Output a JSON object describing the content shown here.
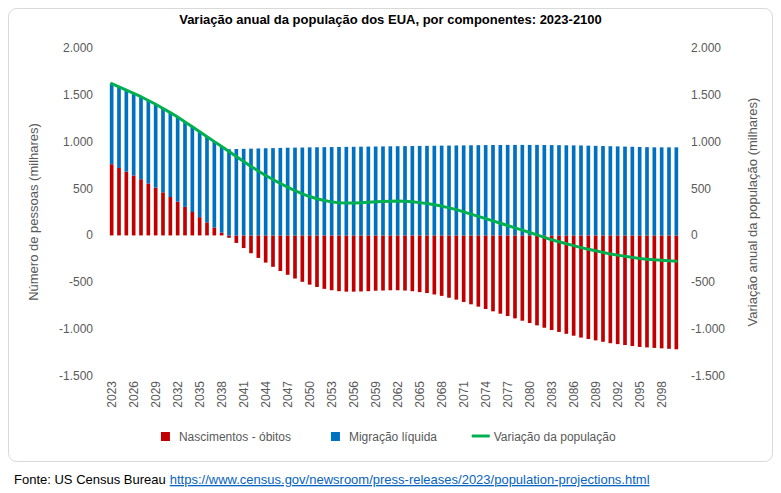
{
  "chart_data": {
    "type": "bar",
    "title": "Variação anual da população dos EUA, por componentes: 2023-2100",
    "y_label": "Número de pessoas (milhares)",
    "y2_label": "Variação anual da população (milhares)",
    "source": "Fonte: US Census Bureau",
    "source_url": "https://www.census.gov/newsroom/press-releases/2023/population-projections.html",
    "stacked": true,
    "grid": false,
    "legend": "bottom",
    "ylim": [
      -1500,
      2000
    ],
    "yticks": [
      {
        "value": -1500,
        "label": "-1.500"
      },
      {
        "value": -1000,
        "label": "-1.000"
      },
      -500,
      0,
      500,
      {
        "value": 1000,
        "label": "1.000"
      },
      {
        "value": 1500,
        "label": "1.500"
      },
      {
        "value": 2000,
        "label": "2.000"
      }
    ],
    "y2lim": [
      -1500,
      2000
    ],
    "y2ticks": [
      {
        "value": -1500,
        "label": "-1.500"
      },
      {
        "value": -1000,
        "label": "-1.000"
      },
      -500,
      0,
      500,
      {
        "value": 1000,
        "label": "1.000"
      },
      {
        "value": 1500,
        "label": "1.500"
      },
      {
        "value": 2000,
        "label": "2.000"
      }
    ],
    "categories": [
      "2023",
      null,
      null,
      "2026",
      null,
      null,
      "2029",
      null,
      null,
      "2032",
      null,
      null,
      "2035",
      null,
      null,
      "2038",
      null,
      null,
      "2041",
      null,
      null,
      "2044",
      null,
      null,
      "2047",
      null,
      null,
      "2050",
      null,
      null,
      "2053",
      null,
      null,
      "2056",
      null,
      null,
      "2059",
      null,
      null,
      "2062",
      null,
      null,
      "2065",
      null,
      null,
      "2068",
      null,
      null,
      "2071",
      null,
      null,
      "2074",
      null,
      null,
      "2077",
      null,
      null,
      "2080",
      null,
      null,
      "2083",
      null,
      null,
      "2086",
      null,
      null,
      "2089",
      null,
      null,
      "2092",
      null,
      null,
      "2095",
      null,
      null,
      "2098",
      null,
      null
    ],
    "series": [
      {
        "name": "Nascimentos - óbitos",
        "type": "bar",
        "color": "#c00000",
        "values": [
          760,
          720,
          680,
          640,
          600,
          555,
          510,
          460,
          410,
          360,
          305,
          250,
          195,
          140,
          85,
          30,
          -25,
          -80,
          -135,
          -190,
          -240,
          -290,
          -335,
          -380,
          -420,
          -460,
          -495,
          -525,
          -550,
          -570,
          -585,
          -595,
          -600,
          -600,
          -598,
          -595,
          -590,
          -588,
          -585,
          -585,
          -588,
          -595,
          -605,
          -615,
          -630,
          -645,
          -665,
          -685,
          -710,
          -735,
          -760,
          -785,
          -810,
          -835,
          -860,
          -885,
          -910,
          -935,
          -960,
          -985,
          -1010,
          -1030,
          -1050,
          -1070,
          -1090,
          -1105,
          -1120,
          -1135,
          -1150,
          -1160,
          -1170,
          -1180,
          -1190,
          -1195,
          -1200,
          -1205,
          -1210,
          -1215
        ]
      },
      {
        "name": "Migração líquida",
        "type": "bar",
        "color": "#0070c0",
        "values": [
          860,
          865,
          870,
          875,
          880,
          885,
          890,
          895,
          900,
          903,
          906,
          909,
          912,
          914,
          916,
          918,
          920,
          922,
          924,
          926,
          928,
          930,
          932,
          934,
          936,
          937,
          938,
          940,
          941,
          942,
          943,
          944,
          945,
          946,
          947,
          948,
          949,
          950,
          951,
          952,
          953,
          954,
          955,
          956,
          957,
          958,
          959,
          960,
          961,
          962,
          963,
          964,
          965,
          965,
          966,
          966,
          966,
          966,
          966,
          965,
          964,
          963,
          962,
          961,
          960,
          958,
          956,
          954,
          952,
          950,
          948,
          946,
          944,
          942,
          940,
          940,
          940,
          940
        ]
      },
      {
        "name": "Variação da população",
        "type": "line",
        "axis": "y2",
        "color": "#00b050",
        "values": [
          1620,
          1585,
          1550,
          1515,
          1480,
          1440,
          1400,
          1355,
          1310,
          1263,
          1211,
          1159,
          1107,
          1054,
          1001,
          948,
          895,
          842,
          789,
          736,
          688,
          640,
          597,
          554,
          516,
          477,
          443,
          415,
          391,
          372,
          358,
          349,
          345,
          346,
          349,
          353,
          359,
          362,
          366,
          367,
          365,
          359,
          350,
          341,
          327,
          313,
          294,
          275,
          251,
          227,
          203,
          179,
          155,
          130,
          106,
          81,
          56,
          31,
          6,
          -20,
          -46,
          -67,
          -88,
          -109,
          -130,
          -147,
          -164,
          -181,
          -198,
          -210,
          -222,
          -234,
          -246,
          -253,
          -260,
          -265,
          -270,
          -275
        ]
      }
    ]
  }
}
